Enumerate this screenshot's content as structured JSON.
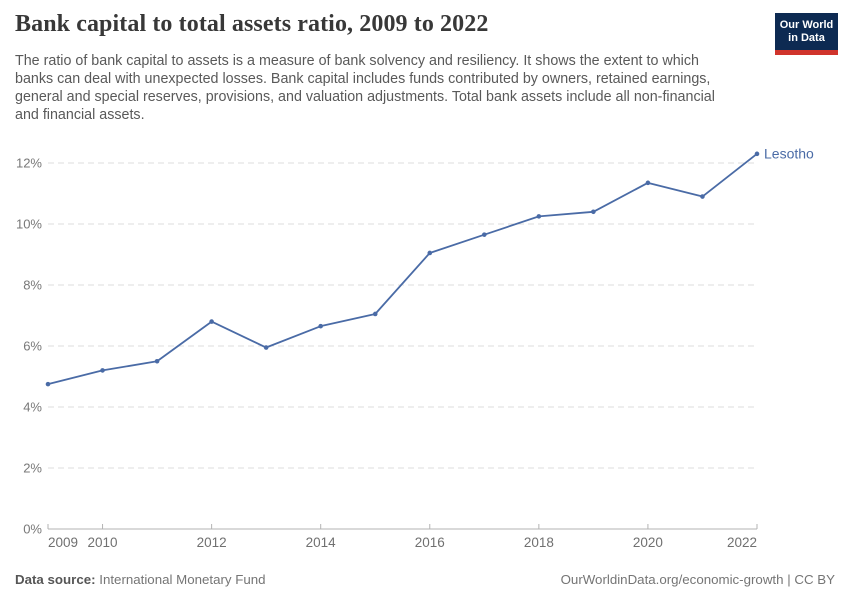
{
  "header": {
    "title": "Bank capital to total assets ratio, 2009 to 2022",
    "subtitle": "The ratio of bank capital to assets is a measure of bank solvency and resiliency. It shows the extent to which banks can deal with unexpected losses. Bank capital includes funds contributed by owners, retained earnings, general and special reserves, provisions, and valuation adjustments. Total bank assets include all non-financial and financial assets.",
    "logo": {
      "line1": "Our World",
      "line2": "in Data",
      "bg_color": "#0d2a52",
      "bar_color": "#d0342c"
    }
  },
  "chart_data": {
    "type": "line",
    "title": "Bank capital to total assets ratio, 2009 to 2022",
    "x": [
      2009,
      2010,
      2011,
      2012,
      2013,
      2014,
      2015,
      2016,
      2017,
      2018,
      2019,
      2020,
      2021,
      2022
    ],
    "series": [
      {
        "name": "Lesotho",
        "color": "#4a6ba6",
        "values": [
          4.75,
          5.2,
          5.5,
          6.8,
          5.95,
          6.65,
          7.05,
          9.05,
          9.65,
          10.25,
          10.4,
          11.35,
          10.9,
          12.3
        ]
      }
    ],
    "xlim": [
      2009,
      2022
    ],
    "ylim": [
      0,
      12.4
    ],
    "x_ticks": [
      2009,
      2010,
      2012,
      2014,
      2016,
      2018,
      2020,
      2022
    ],
    "y_ticks": [
      0,
      2,
      4,
      6,
      8,
      10,
      12
    ],
    "y_tick_suffix": "%",
    "grid": "horizontal-dashed",
    "legend_position": "end-of-line-label"
  },
  "footer": {
    "source_label": "Data source:",
    "source_value": "International Monetary Fund",
    "credit_link": "OurWorldinData.org/economic-growth",
    "separator": " | ",
    "license": "CC BY"
  }
}
